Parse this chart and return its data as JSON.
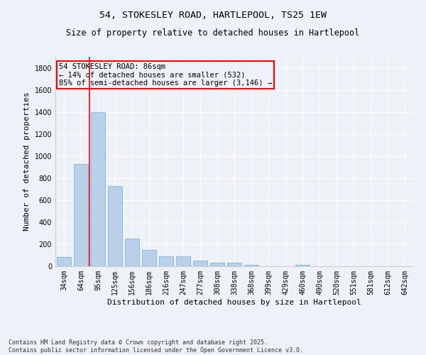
{
  "title1": "54, STOKESLEY ROAD, HARTLEPOOL, TS25 1EW",
  "title2": "Size of property relative to detached houses in Hartlepool",
  "xlabel": "Distribution of detached houses by size in Hartlepool",
  "ylabel": "Number of detached properties",
  "categories": [
    "34sqm",
    "64sqm",
    "95sqm",
    "125sqm",
    "156sqm",
    "186sqm",
    "216sqm",
    "247sqm",
    "277sqm",
    "308sqm",
    "338sqm",
    "368sqm",
    "399sqm",
    "429sqm",
    "460sqm",
    "490sqm",
    "520sqm",
    "551sqm",
    "581sqm",
    "612sqm",
    "642sqm"
  ],
  "values": [
    85,
    925,
    1400,
    730,
    250,
    150,
    90,
    90,
    50,
    30,
    30,
    10,
    0,
    0,
    15,
    0,
    0,
    0,
    0,
    0,
    0
  ],
  "bar_color": "#b8d0ea",
  "bar_edge_color": "#6aaed6",
  "vline_color": "red",
  "annotation_line1": "54 STOKESLEY ROAD: 86sqm",
  "annotation_line2": "← 14% of detached houses are smaller (532)",
  "annotation_line3": "85% of semi-detached houses are larger (3,146) →",
  "annotation_box_color": "red",
  "ylim": [
    0,
    1900
  ],
  "yticks": [
    0,
    200,
    400,
    600,
    800,
    1000,
    1200,
    1400,
    1600,
    1800
  ],
  "background_color": "#eef2f8",
  "grid_color": "white",
  "footer": "Contains HM Land Registry data © Crown copyright and database right 2025.\nContains public sector information licensed under the Open Government Licence v3.0.",
  "title_fontsize": 9.5,
  "subtitle_fontsize": 8.5,
  "axis_label_fontsize": 8,
  "tick_fontsize": 7,
  "annotation_fontsize": 7.5,
  "footer_fontsize": 6
}
